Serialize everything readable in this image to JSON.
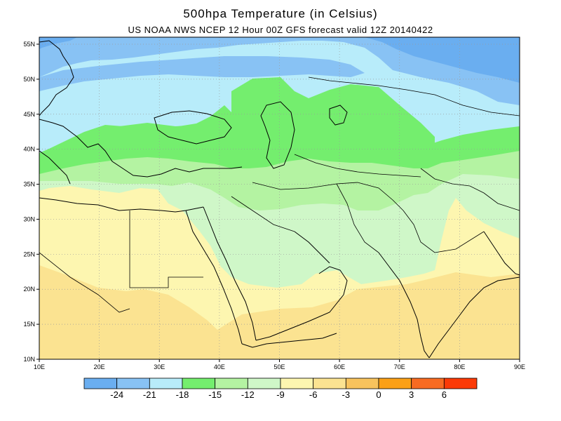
{
  "title": "500hpa  Temperature (in Celsius)",
  "subtitle": "US NOAA NWS NCEP 12 Hour 00Z GFS forecast valid 12Z 20140422",
  "map": {
    "lon_range": [
      10,
      90
    ],
    "lat_range": [
      10,
      56
    ],
    "lon_ticks": [
      "10E",
      "20E",
      "30E",
      "40E",
      "50E",
      "60E",
      "70E",
      "80E",
      "90E"
    ],
    "lat_ticks": [
      "10N",
      "15N",
      "20N",
      "25N",
      "30N",
      "35N",
      "40N",
      "45N",
      "50N",
      "55N"
    ],
    "grid": true
  },
  "colorbar": {
    "labels": [
      "-24",
      "-21",
      "-18",
      "-15",
      "-12",
      "-9",
      "-6",
      "-3",
      "0",
      "3",
      "6"
    ],
    "colors": [
      "#6aaef0",
      "#88c2f4",
      "#b8ecfa",
      "#74ee6e",
      "#b4f3a2",
      "#cff7c8",
      "#fdf6b0",
      "#fbe391",
      "#f8c35d",
      "#fba017",
      "#f86b22",
      "#fb3a07"
    ]
  },
  "bands": {
    "c_m24": "#6aaef0",
    "c_m21": "#88c2f4",
    "c_m18": "#b8ecfa",
    "c_m15": "#74ee6e",
    "c_m12": "#b4f3a2",
    "c_m9": "#cff7c8",
    "c_m6": "#fdf6b0",
    "c_m3": "#fbe391"
  }
}
